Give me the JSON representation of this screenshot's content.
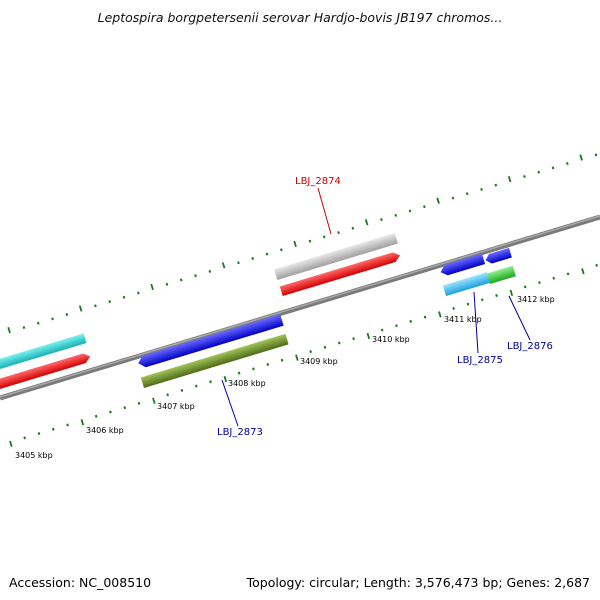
{
  "title": "Leptospira borgpetersenii serovar Hardjo-bovis JB197 chromos...",
  "footer": {
    "accession": "Accession: NC_008510",
    "topology": "Topology: circular; Length: 3,576,473 bp; Genes: 2,687"
  },
  "tick_labels": [
    "3405 kbp",
    "3406 kbp",
    "3407 kbp",
    "3408 kbp",
    "3409 kbp",
    "3410 kbp",
    "3411 kbp",
    "3412 kbp"
  ],
  "gene_labels": [
    {
      "name": "LBJ_2874",
      "color": "#cc0000"
    },
    {
      "name": "LBJ_2873",
      "color": "#000099"
    },
    {
      "name": "LBJ_2875",
      "color": "#000099"
    },
    {
      "name": "LBJ_2876",
      "color": "#000099"
    }
  ],
  "colors": {
    "backbone": "#808080",
    "ticks": "#1a7a1a",
    "cyan": "#22c8c8",
    "red": "#ee1111",
    "gray": "#b8b8b8",
    "blue": "#1a1ae0",
    "olive": "#6b8e23",
    "light_blue": "#33b5f0",
    "green": "#33cc33"
  }
}
